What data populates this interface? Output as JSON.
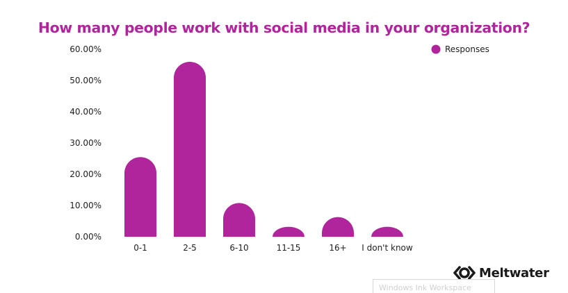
{
  "chart_data": {
    "type": "bar",
    "title": "How many people work with social media in your organization?",
    "categories": [
      "0-1",
      "2-5",
      "6-10",
      "11-15",
      "16+",
      "I don't know"
    ],
    "series": [
      {
        "name": "Responses",
        "values": [
          25.5,
          56.0,
          10.8,
          3.2,
          6.3,
          3.2
        ]
      }
    ],
    "y_ticks": [
      "0.00%",
      "10.00%",
      "20.00%",
      "30.00%",
      "40.00%",
      "50.00%",
      "60.00%"
    ],
    "ylim": [
      0,
      60
    ],
    "xlabel": "",
    "ylabel": "",
    "grid": false,
    "legend_position": "top-right",
    "bar_color": "#b0249c"
  },
  "branding": {
    "logo_text": "Meltwater",
    "logo_icon": "meltwater-logo-icon"
  },
  "overlay": {
    "ink_workspace_label": "Windows Ink Workspace"
  }
}
